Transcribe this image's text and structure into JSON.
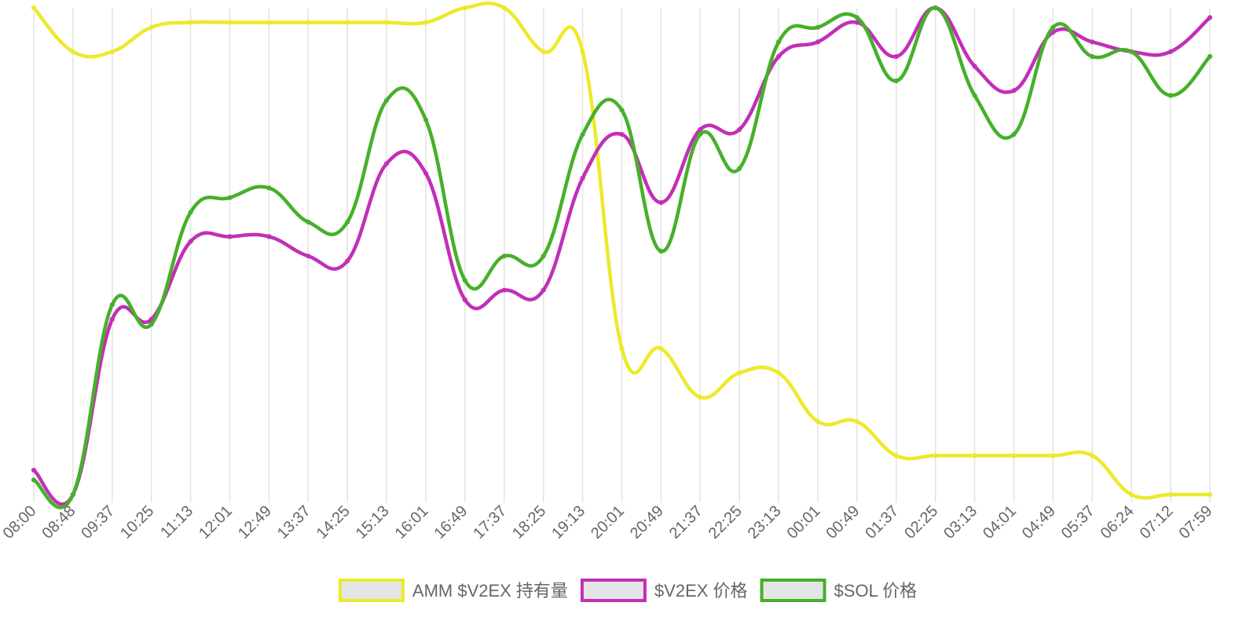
{
  "chart_data": {
    "type": "line",
    "title": "",
    "xlabel": "",
    "ylabel": "",
    "grid": {
      "vertical": true,
      "horizontal": false
    },
    "legend": {
      "position": "bottom"
    },
    "x_tick_labels": [
      "08:00",
      "08:48",
      "09:37",
      "10:25",
      "11:13",
      "12:01",
      "12:49",
      "13:37",
      "14:25",
      "15:13",
      "16:01",
      "16:49",
      "17:37",
      "18:25",
      "19:13",
      "20:01",
      "20:49",
      "21:37",
      "22:25",
      "23:13",
      "00:01",
      "00:49",
      "01:37",
      "02:25",
      "03:13",
      "04:01",
      "04:49",
      "05:37",
      "06:24",
      "07:12",
      "07:59"
    ],
    "normalized_scale": "each series min=0 max=100",
    "x": [
      0,
      1,
      2,
      3,
      4,
      5,
      6,
      7,
      8,
      9,
      10,
      11,
      12,
      13,
      14,
      15,
      16,
      17,
      18,
      19,
      20,
      21,
      22,
      23,
      24,
      25,
      26,
      27,
      28,
      29,
      30
    ],
    "series": [
      {
        "name": "AMM $V2EX 持有量",
        "color": "#ecea2a",
        "values": [
          100,
          91,
          91,
          96,
          97,
          97,
          97,
          97,
          97,
          97,
          97,
          100,
          100,
          91,
          91,
          30,
          30,
          20,
          25,
          25,
          15,
          15,
          8,
          8,
          8,
          8,
          8,
          8,
          0,
          0,
          0
        ]
      },
      {
        "name": "$V2EX 价格",
        "color": "#c22fb7",
        "values": [
          5,
          0,
          36,
          36,
          52,
          53,
          53,
          49,
          48,
          68,
          66,
          40,
          42,
          42,
          65,
          74,
          60,
          75,
          75,
          90,
          93,
          97,
          90,
          100,
          88,
          83,
          95,
          93,
          91,
          91,
          98
        ]
      },
      {
        "name": "$SOL 价格",
        "color": "#46b02a",
        "values": [
          3,
          0,
          39,
          35,
          58,
          61,
          63,
          56,
          56,
          81,
          77,
          44,
          49,
          49,
          74,
          79,
          50,
          74,
          67,
          93,
          96,
          98,
          85,
          100,
          82,
          74,
          96,
          90,
          91,
          82,
          90
        ]
      }
    ]
  }
}
